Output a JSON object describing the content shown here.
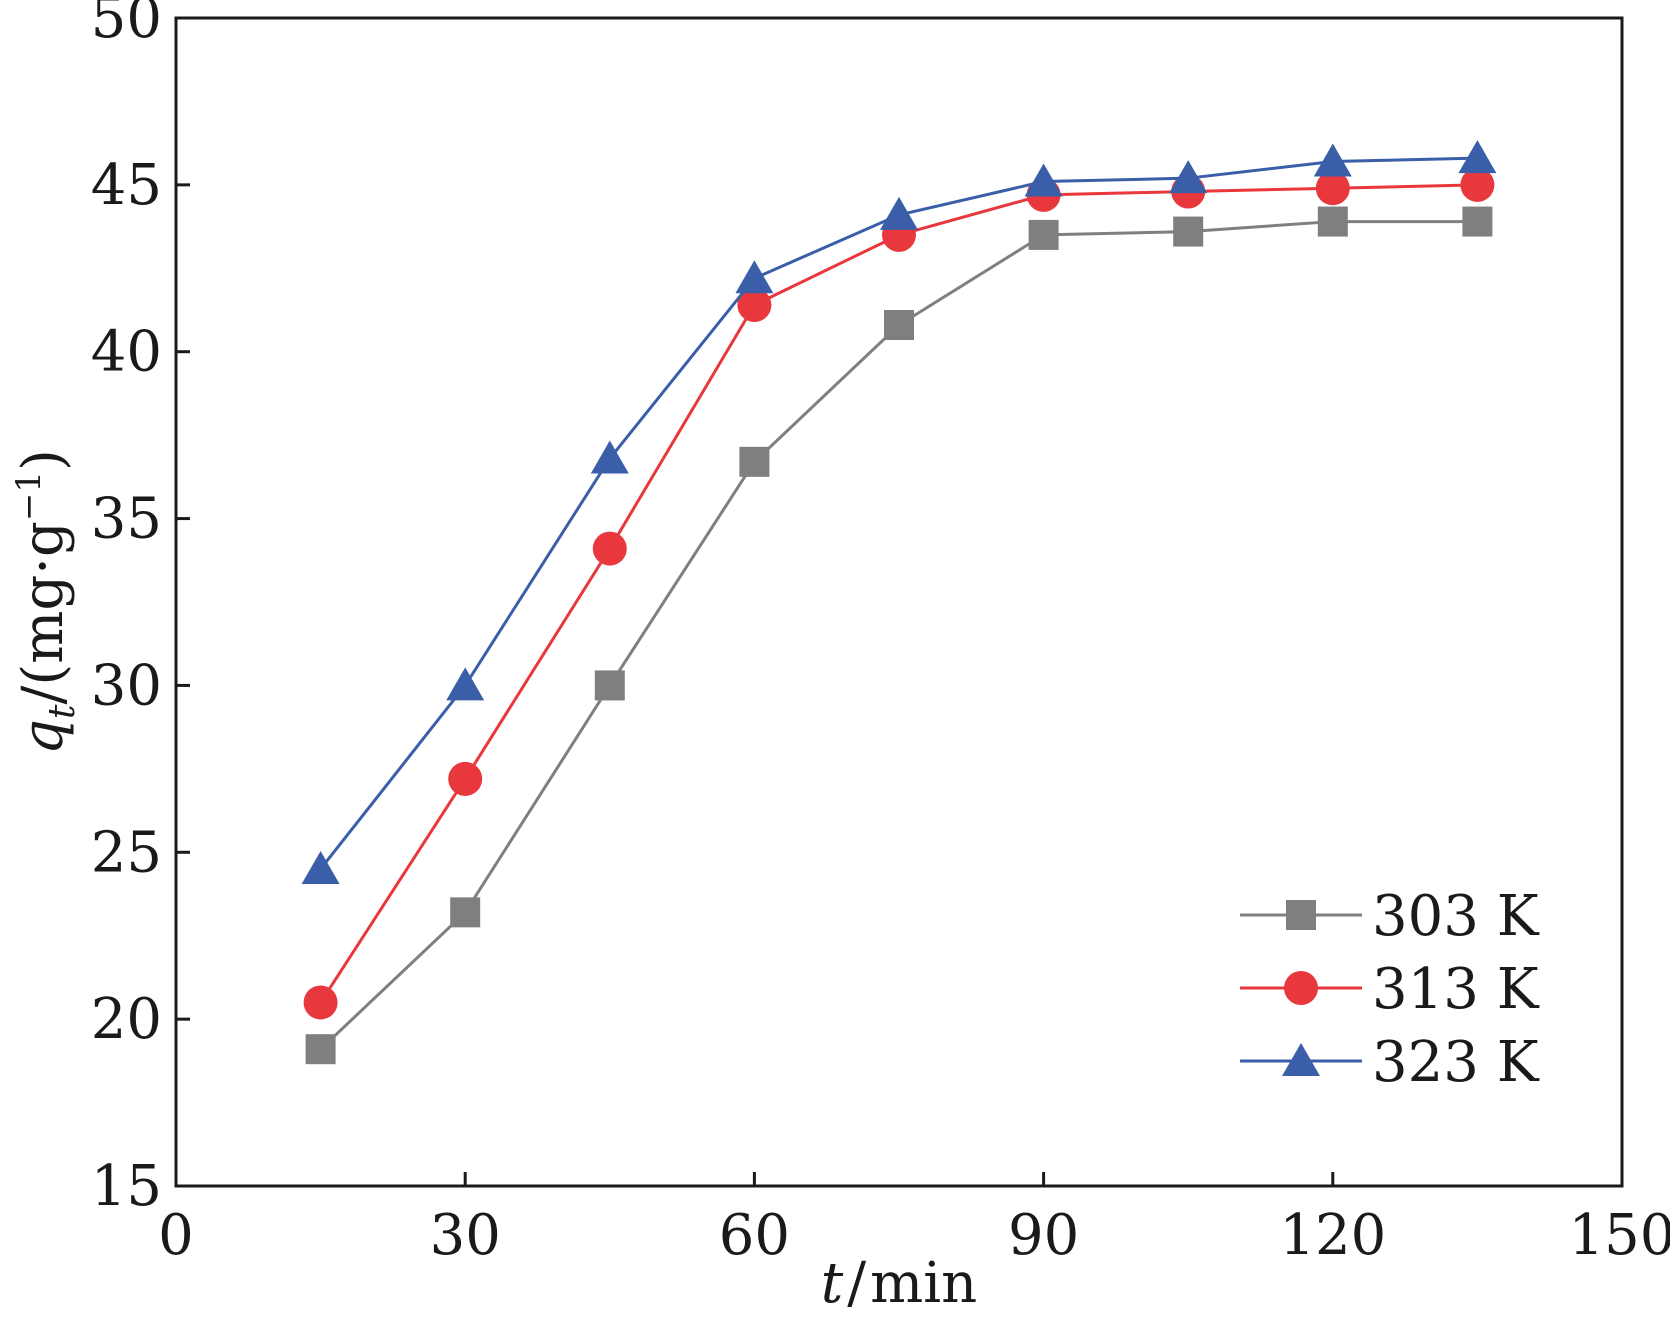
{
  "chart_data": {
    "type": "line",
    "title": "",
    "x": [
      15,
      30,
      45,
      60,
      75,
      90,
      105,
      120,
      135
    ],
    "series": [
      {
        "name": "303 K",
        "color": "#7f7f7f",
        "marker": "square",
        "values": [
          19.1,
          23.2,
          30.0,
          36.7,
          40.8,
          43.5,
          43.6,
          43.9,
          43.9
        ]
      },
      {
        "name": "313 K",
        "color": "#e8383d",
        "marker": "circle",
        "values": [
          20.5,
          27.2,
          34.1,
          41.4,
          43.5,
          44.7,
          44.8,
          44.9,
          45.0
        ]
      },
      {
        "name": "323 K",
        "color": "#3a5ea8",
        "marker": "triangle",
        "values": [
          24.5,
          30.0,
          36.8,
          42.2,
          44.1,
          45.1,
          45.2,
          45.7,
          45.8
        ]
      }
    ],
    "xlim": [
      0,
      150
    ],
    "ylim": [
      15,
      50
    ],
    "xticks": [
      0,
      30,
      60,
      90,
      120,
      150
    ],
    "yticks": [
      15,
      20,
      25,
      30,
      35,
      40,
      45,
      50
    ],
    "xlabel": {
      "var": "t",
      "sep": "/",
      "unit": "min"
    },
    "ylabel": {
      "var": "q",
      "sub": "t",
      "sep": "/",
      "unit": "(mg·g",
      "exp": "−1",
      "close": ")"
    },
    "grid": false,
    "legend_position": "bottom-right"
  }
}
